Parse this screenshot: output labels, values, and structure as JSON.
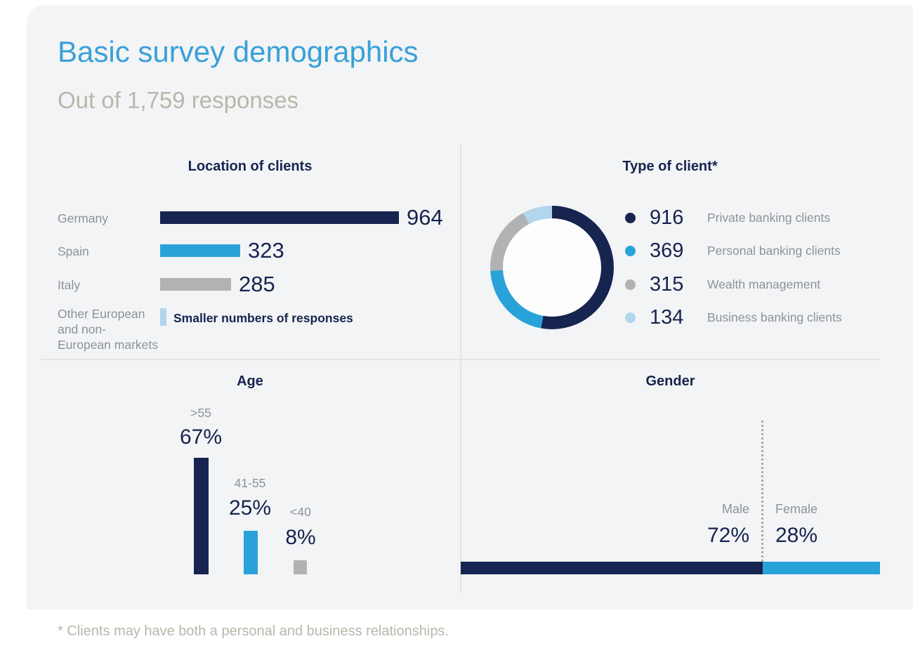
{
  "header": {
    "title": "Basic survey demographics",
    "subtitle": "Out of 1,759 responses"
  },
  "footnote": "* Clients may have both a personal and business relationships.",
  "colors": {
    "accent_blue": "#38a0d9",
    "navy": "#16244f",
    "blue": "#29a2da",
    "gray": "#b1b2b4",
    "light_blue": "#b3d5ed",
    "muted_label": "#8d9298",
    "warm_gray_text": "#b9b6aa",
    "card_bg": "#f3f4f5",
    "divider": "#e2e4e6"
  },
  "location_chart": {
    "title": "Location of clients",
    "rows": [
      {
        "label": "Germany",
        "value": "964"
      },
      {
        "label": "Spain",
        "value": "323"
      },
      {
        "label": "Italy",
        "value": "285"
      }
    ],
    "other_label_lines": [
      "Other European",
      "and non-",
      "European markets"
    ],
    "other_note": "Smaller numbers of responses"
  },
  "client_type_chart": {
    "title": "Type of client*",
    "legend": [
      {
        "value": "916",
        "label": "Private banking clients"
      },
      {
        "value": "369",
        "label": "Personal banking clients"
      },
      {
        "value": "315",
        "label": "Wealth management"
      },
      {
        "value": "134",
        "label": "Business banking clients"
      }
    ]
  },
  "age_chart": {
    "title": "Age",
    "bars": [
      {
        "label": ">55",
        "value": "67%"
      },
      {
        "label": "41-55",
        "value": "25%"
      },
      {
        "label": "<40",
        "value": "8%"
      }
    ]
  },
  "gender_chart": {
    "title": "Gender",
    "segments": [
      {
        "label": "Male",
        "value": "72%"
      },
      {
        "label": "Female",
        "value": "28%"
      }
    ]
  },
  "chart_data": [
    {
      "type": "bar",
      "orientation": "horizontal",
      "title": "Location of clients",
      "categories": [
        "Germany",
        "Spain",
        "Italy",
        "Other European and non-European markets"
      ],
      "values": [
        964,
        323,
        285,
        null
      ],
      "annotation": "Smaller numbers of responses",
      "colors": [
        "#16244f",
        "#29a2da",
        "#b1b2b4",
        "#b3d5ed"
      ],
      "grid": false,
      "legend_position": "none"
    },
    {
      "type": "pie",
      "donut": true,
      "title": "Type of client*",
      "categories": [
        "Private banking clients",
        "Personal banking clients",
        "Wealth management",
        "Business banking clients"
      ],
      "values": [
        916,
        369,
        315,
        134
      ],
      "colors": [
        "#16244f",
        "#29a2da",
        "#b1b2b4",
        "#b3d5ed"
      ],
      "legend_position": "right"
    },
    {
      "type": "bar",
      "orientation": "vertical",
      "title": "Age",
      "categories": [
        ">55",
        "41-55",
        "<40"
      ],
      "values": [
        67,
        25,
        8
      ],
      "unit": "%",
      "ylim": [
        0,
        67
      ],
      "colors": [
        "#16244f",
        "#29a2da",
        "#b1b2b4"
      ],
      "grid": false,
      "legend_position": "none"
    },
    {
      "type": "bar",
      "orientation": "horizontal-stacked",
      "title": "Gender",
      "categories": [
        "Male",
        "Female"
      ],
      "values": [
        72,
        28
      ],
      "unit": "%",
      "colors": [
        "#16244f",
        "#29a2da"
      ],
      "grid": false,
      "legend_position": "none"
    }
  ]
}
